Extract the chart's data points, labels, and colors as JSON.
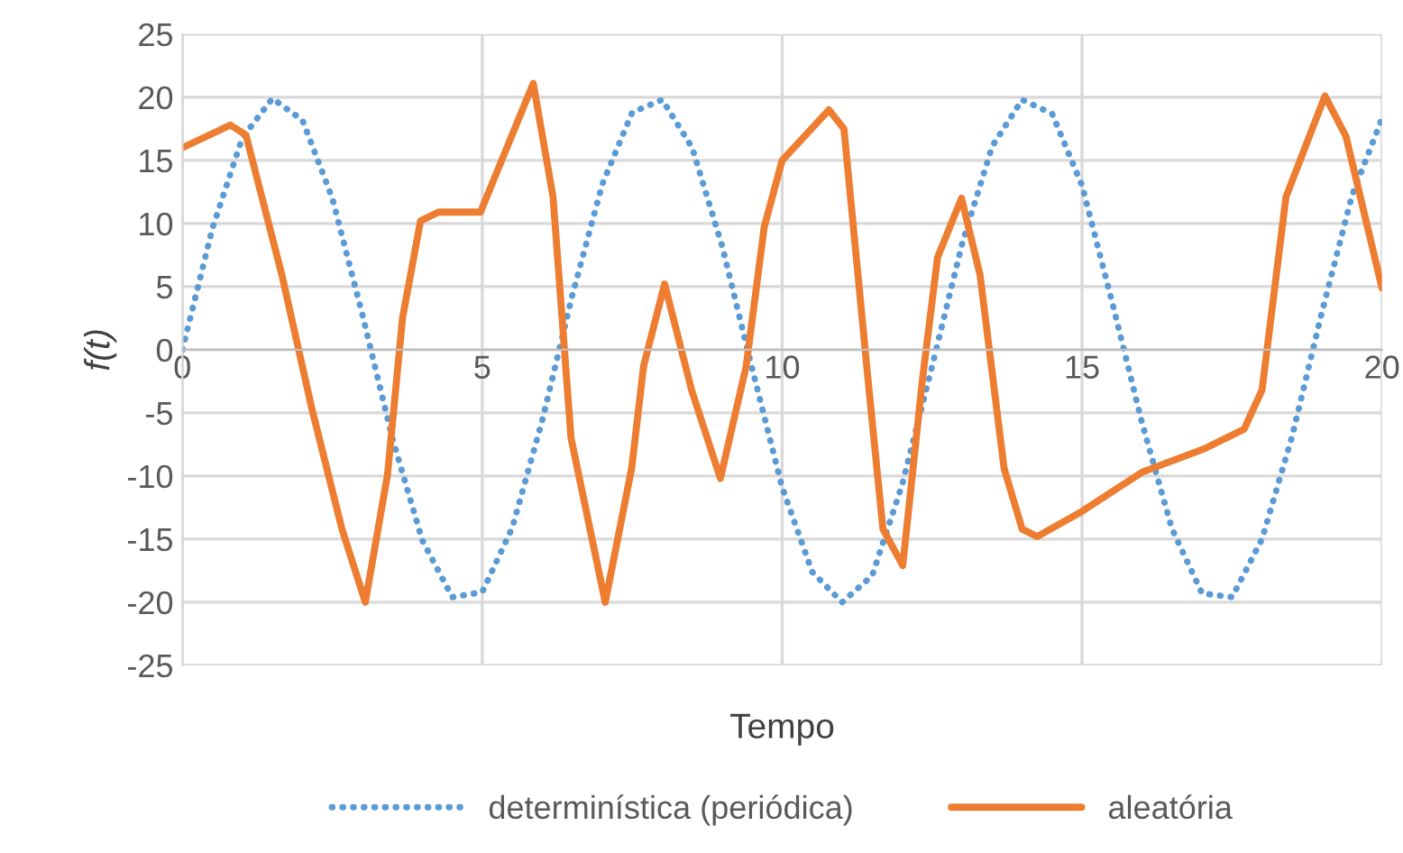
{
  "chart_data": {
    "type": "line",
    "xlabel": "Tempo",
    "ylabel": "f(t)",
    "xlim": [
      0,
      20
    ],
    "ylim": [
      -25,
      25
    ],
    "xticks": [
      0,
      5,
      10,
      15,
      20
    ],
    "yticks": [
      -25,
      -20,
      -15,
      -10,
      -5,
      0,
      5,
      10,
      15,
      20,
      25
    ],
    "grid": true,
    "legend": "bottom",
    "marker": "none",
    "series": [
      {
        "name": "determinística (periódica)",
        "color": "#5b9bd5",
        "line_style": "dotted",
        "x": [
          0,
          0.5,
          1,
          1.5,
          2,
          2.5,
          3,
          3.5,
          4,
          4.5,
          5,
          5.5,
          6,
          6.5,
          7,
          7.5,
          8,
          8.5,
          9,
          9.5,
          10,
          10.5,
          11,
          11.5,
          12,
          12.5,
          13,
          13.5,
          14,
          14.5,
          15,
          15.5,
          16,
          16.5,
          17,
          17.5,
          18,
          18.5,
          19,
          19.5,
          20
        ],
        "values": [
          0,
          9.6,
          16.8,
          19.9,
          18.2,
          12.0,
          2.8,
          -7.0,
          -15.1,
          -19.6,
          -19.2,
          -14.1,
          -5.6,
          4.3,
          13.1,
          18.8,
          19.8,
          16.0,
          8.2,
          -1.5,
          -10.9,
          -17.6,
          -20.0,
          -17.9,
          -10.7,
          -1.3,
          8.4,
          16.1,
          19.8,
          18.7,
          13.0,
          3.8,
          -5.8,
          -14.2,
          -19.3,
          -19.6,
          -15.0,
          -6.9,
          3.0,
          12.2,
          18.3
        ]
      },
      {
        "name": "aleatória",
        "color": "#ed7d31",
        "line_style": "solid",
        "x": [
          0,
          0.8,
          1.06,
          1.66,
          2.16,
          2.66,
          3.05,
          3.42,
          3.67,
          3.97,
          4.27,
          4.97,
          5.28,
          5.85,
          6.18,
          6.48,
          7.05,
          7.49,
          7.69,
          8.04,
          8.49,
          8.97,
          9.4,
          9.7,
          10,
          10.78,
          11.03,
          11.43,
          11.68,
          12.01,
          12.34,
          12.59,
          12.99,
          13.3,
          13.7,
          14.0,
          14.25,
          15.0,
          16.0,
          17.06,
          17.7,
          18.0,
          18.4,
          19.05,
          19.4,
          20
        ],
        "values": [
          16,
          17.8,
          17,
          5.9,
          -4.7,
          -14.2,
          -20,
          -9.9,
          2.5,
          10.2,
          10.9,
          10.9,
          14.5,
          21.1,
          12.1,
          -7,
          -20,
          -9.4,
          -1.3,
          5.2,
          -3.2,
          -10.2,
          -1.3,
          9.7,
          15,
          19,
          17.5,
          -2.3,
          -14.2,
          -17.1,
          -2.3,
          7.3,
          12,
          5.9,
          -9.4,
          -14.2,
          -14.8,
          -12.8,
          -9.7,
          -7.8,
          -6.3,
          -3.2,
          12.1,
          20.1,
          16.9,
          4.9
        ]
      }
    ]
  }
}
